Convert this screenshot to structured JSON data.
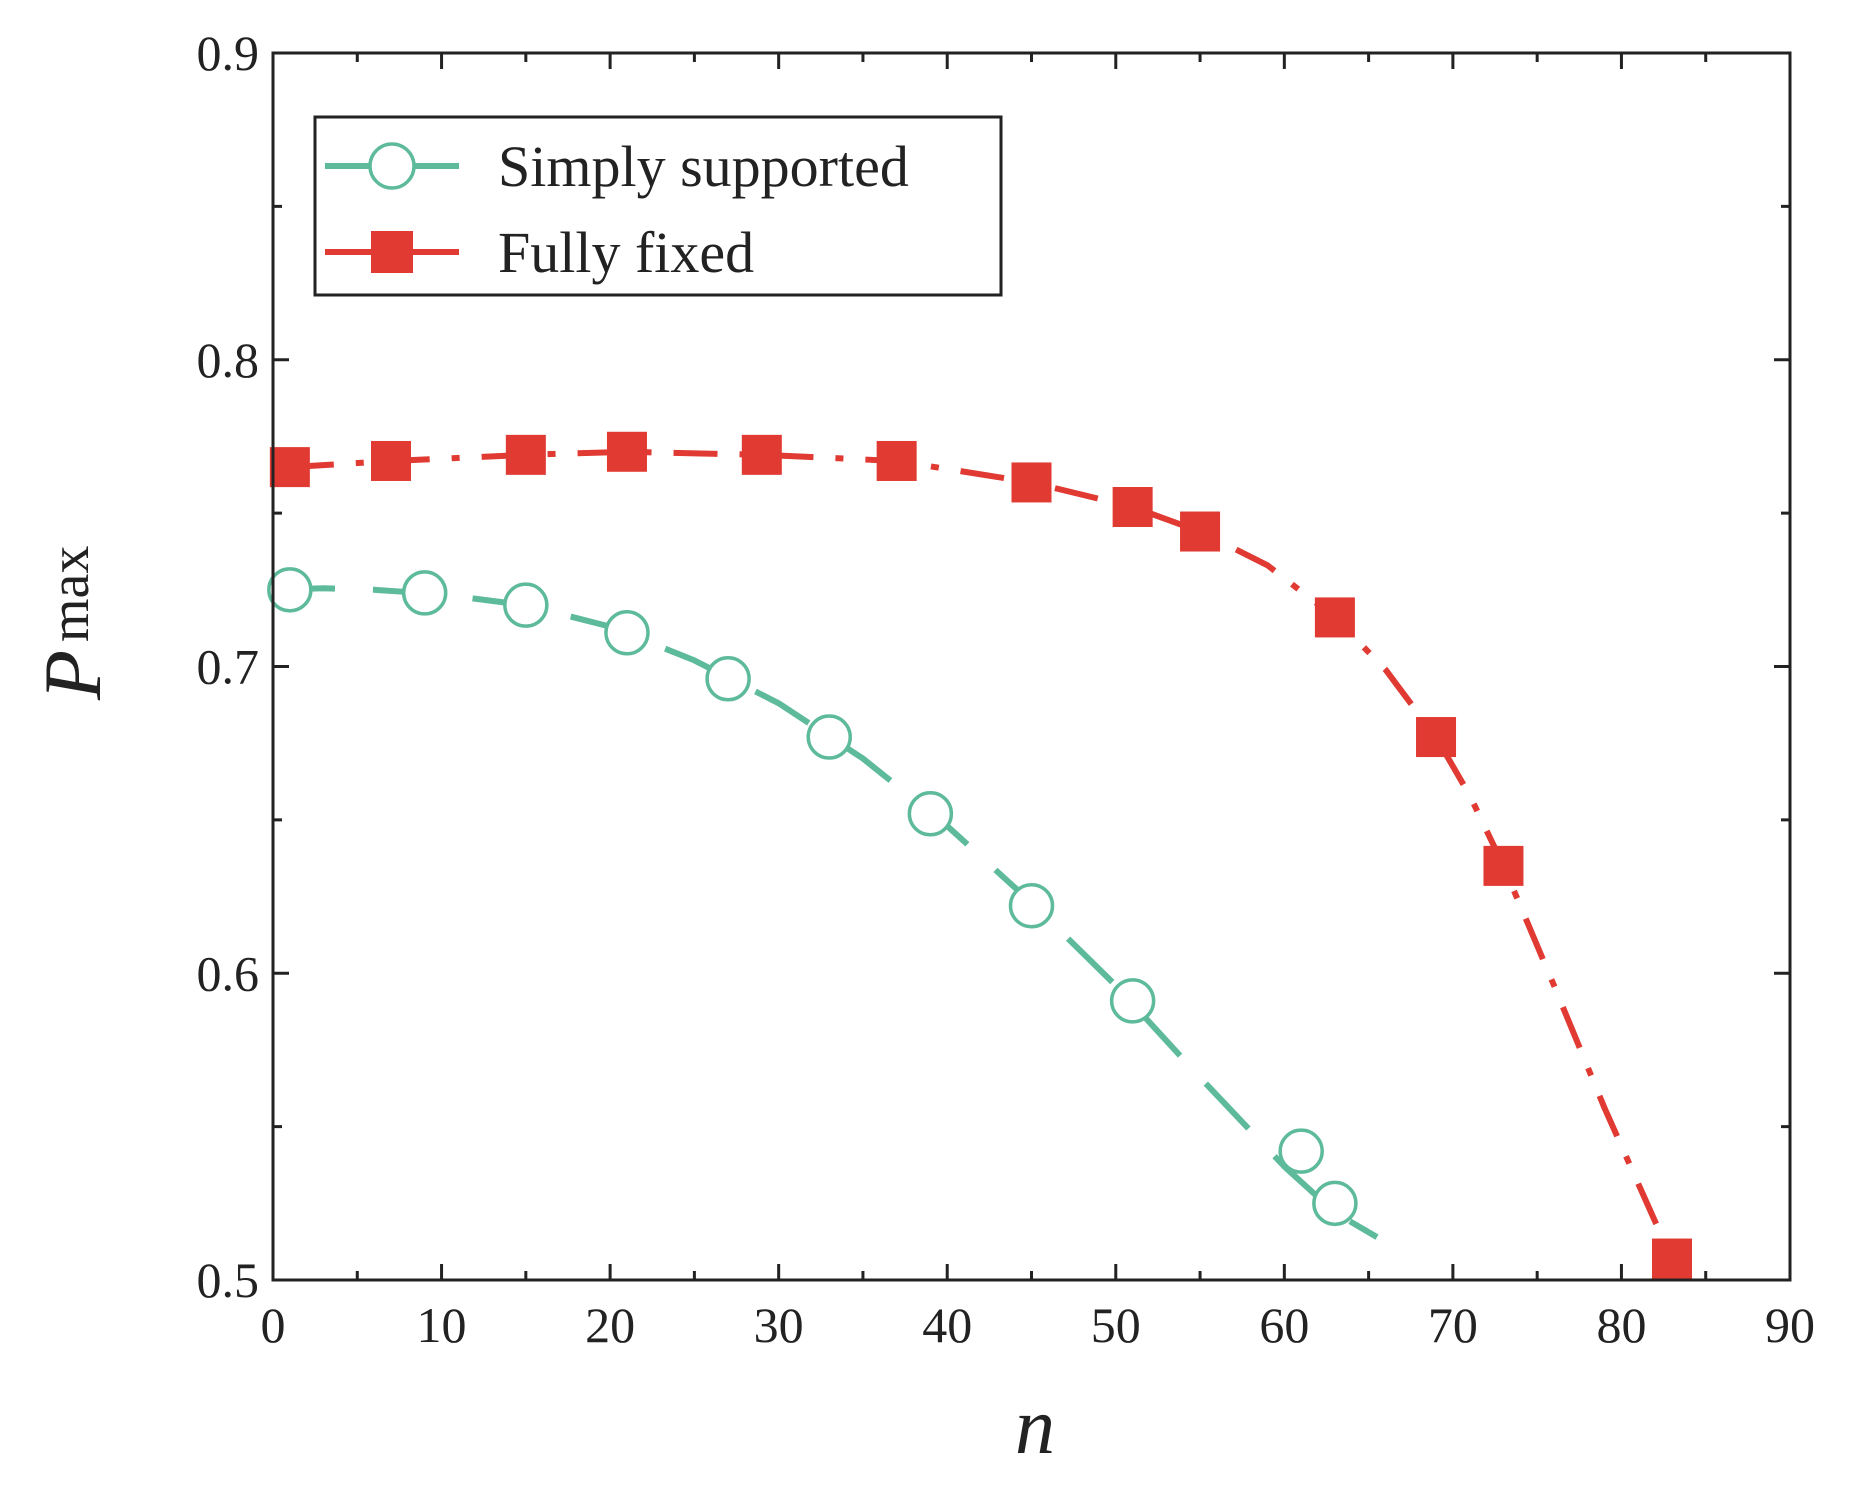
{
  "chart_data": {
    "type": "line",
    "title": "",
    "xlabel": "n",
    "ylabel": {
      "main": "P",
      "sub": "max"
    },
    "xlim": [
      0,
      90
    ],
    "ylim": [
      0.5,
      0.9
    ],
    "xticks": [
      0,
      10,
      20,
      30,
      40,
      50,
      60,
      70,
      80,
      90
    ],
    "xtick_labels": [
      "0",
      "10",
      "20",
      "30",
      "40",
      "50",
      "60",
      "70",
      "80",
      "90"
    ],
    "yticks": [
      0.5,
      0.6,
      0.7,
      0.8,
      0.9
    ],
    "ytick_labels": [
      "0.5",
      "0.6",
      "0.7",
      "0.8",
      "0.9"
    ],
    "grid": false,
    "legend": "top-left",
    "series": [
      {
        "name": "Simply supported",
        "color": "#5dba9a",
        "marker": "open-circle",
        "linestyle": "dashed",
        "x": [
          1,
          9,
          15,
          21,
          27,
          33,
          39,
          45,
          51,
          61,
          63
        ],
        "y": [
          0.725,
          0.724,
          0.72,
          0.711,
          0.696,
          0.677,
          0.652,
          0.622,
          0.591,
          0.542,
          0.525
        ],
        "curve": {
          "x": [
            0,
            3,
            6,
            10,
            15,
            20,
            25,
            30,
            35,
            40,
            45,
            50,
            55,
            60,
            63,
            65.5
          ],
          "y": [
            0.725,
            0.7255,
            0.725,
            0.7235,
            0.72,
            0.713,
            0.702,
            0.688,
            0.67,
            0.648,
            0.623,
            0.596,
            0.566,
            0.537,
            0.522,
            0.514
          ]
        }
      },
      {
        "name": "Fully fixed",
        "color": "#e03a32",
        "marker": "filled-square",
        "linestyle": "dash-dot",
        "x": [
          1,
          7,
          15,
          21,
          29,
          37,
          45,
          51,
          55,
          63,
          69,
          73,
          83
        ],
        "y": [
          0.765,
          0.767,
          0.769,
          0.77,
          0.769,
          0.767,
          0.76,
          0.752,
          0.744,
          0.716,
          0.677,
          0.635,
          0.507
        ],
        "curve": {
          "x": [
            1,
            7,
            15,
            21,
            29,
            37,
            45,
            51,
            55,
            59,
            63,
            66,
            69,
            71,
            73,
            76,
            79,
            82,
            83
          ],
          "y": [
            0.765,
            0.767,
            0.769,
            0.77,
            0.769,
            0.767,
            0.76,
            0.752,
            0.744,
            0.733,
            0.716,
            0.699,
            0.677,
            0.658,
            0.635,
            0.596,
            0.556,
            0.519,
            0.507
          ]
        }
      }
    ]
  }
}
